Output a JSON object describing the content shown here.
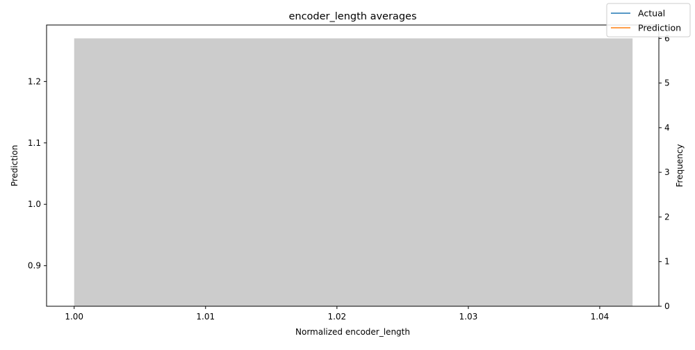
{
  "chart_data": {
    "type": "bar",
    "title": "encoder_length averages",
    "xlabel": "Normalized encoder_length",
    "ylabel": "Prediction",
    "y2label": "Frequency",
    "xlim": [
      0.9979,
      1.0445
    ],
    "ylim": [
      0.834,
      1.292
    ],
    "y2lim": [
      0,
      6.3
    ],
    "x_ticks": [
      "1.00",
      "1.01",
      "1.02",
      "1.03",
      "1.04"
    ],
    "x_tick_values": [
      1.0,
      1.01,
      1.02,
      1.03,
      1.04
    ],
    "y_ticks": [
      "0.9",
      "1.0",
      "1.1",
      "1.2"
    ],
    "y_tick_values": [
      0.9,
      1.0,
      1.1,
      1.2
    ],
    "y2_ticks": [
      "0",
      "1",
      "2",
      "3",
      "4",
      "5",
      "6"
    ],
    "y2_tick_values": [
      0,
      1,
      2,
      3,
      4,
      5,
      6
    ],
    "histogram": {
      "bin_start": 1.0,
      "bin_end": 1.0425,
      "frequency": 6,
      "color": "#cccccc"
    },
    "series": [
      {
        "name": "Actual",
        "color": "#1f77b4",
        "values": []
      },
      {
        "name": "Prediction",
        "color": "#ff7f0e",
        "values": []
      }
    ],
    "legend": "top-right",
    "grid": false
  }
}
